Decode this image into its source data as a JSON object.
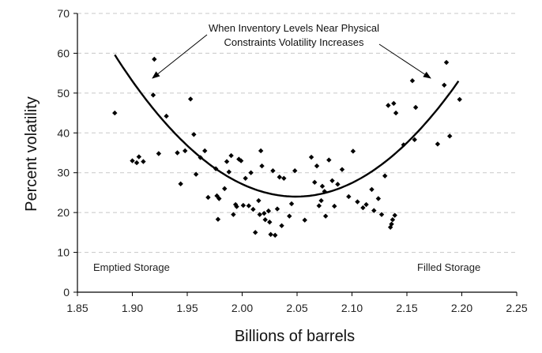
{
  "chart_data": {
    "type": "scatter",
    "title": "",
    "xlabel": "Billions of barrels",
    "ylabel": "Percent volatility",
    "xlim": [
      1.85,
      2.25
    ],
    "ylim": [
      0,
      70
    ],
    "x_ticks": [
      "1.85",
      "1.90",
      "1.95",
      "2.00",
      "2.05",
      "2.10",
      "2.15",
      "2.20",
      "2.25"
    ],
    "y_ticks": [
      "0",
      "10",
      "20",
      "30",
      "40",
      "50",
      "60",
      "70"
    ],
    "grid": "horizontal dashed",
    "marker_color": "#000000",
    "points": [
      [
        1.884,
        45.0
      ],
      [
        1.9,
        33.0
      ],
      [
        1.904,
        32.5
      ],
      [
        1.906,
        34.0
      ],
      [
        1.91,
        32.8
      ],
      [
        1.92,
        58.5
      ],
      [
        1.919,
        49.5
      ],
      [
        1.924,
        34.8
      ],
      [
        1.931,
        44.2
      ],
      [
        1.941,
        35.0
      ],
      [
        1.944,
        27.2
      ],
      [
        1.948,
        35.5
      ],
      [
        1.953,
        48.5
      ],
      [
        1.956,
        39.6
      ],
      [
        1.958,
        29.6
      ],
      [
        1.962,
        33.8
      ],
      [
        1.966,
        35.5
      ],
      [
        1.969,
        23.8
      ],
      [
        1.976,
        31.0
      ],
      [
        1.977,
        24.2
      ],
      [
        1.978,
        18.3
      ],
      [
        1.979,
        23.5
      ],
      [
        1.984,
        26.0
      ],
      [
        1.986,
        32.8
      ],
      [
        1.988,
        30.2
      ],
      [
        1.99,
        34.3
      ],
      [
        1.992,
        19.5
      ],
      [
        1.994,
        22.0
      ],
      [
        1.995,
        21.5
      ],
      [
        1.997,
        33.4
      ],
      [
        1.999,
        33.0
      ],
      [
        2.001,
        21.8
      ],
      [
        2.003,
        28.6
      ],
      [
        2.006,
        21.7
      ],
      [
        2.008,
        30.0
      ],
      [
        2.01,
        20.8
      ],
      [
        2.012,
        15.0
      ],
      [
        2.015,
        23.0
      ],
      [
        2.016,
        19.5
      ],
      [
        2.017,
        35.5
      ],
      [
        2.018,
        31.7
      ],
      [
        2.02,
        19.8
      ],
      [
        2.021,
        18.2
      ],
      [
        2.024,
        20.4
      ],
      [
        2.025,
        17.6
      ],
      [
        2.026,
        14.5
      ],
      [
        2.028,
        30.5
      ],
      [
        2.03,
        14.3
      ],
      [
        2.032,
        20.9
      ],
      [
        2.034,
        28.9
      ],
      [
        2.036,
        16.7
      ],
      [
        2.038,
        28.6
      ],
      [
        2.043,
        19.1
      ],
      [
        2.045,
        22.2
      ],
      [
        2.048,
        30.5
      ],
      [
        2.057,
        18.1
      ],
      [
        2.063,
        33.9
      ],
      [
        2.066,
        27.6
      ],
      [
        2.068,
        31.7
      ],
      [
        2.07,
        21.7
      ],
      [
        2.072,
        23.0
      ],
      [
        2.073,
        26.6
      ],
      [
        2.075,
        25.3
      ],
      [
        2.076,
        19.1
      ],
      [
        2.079,
        33.2
      ],
      [
        2.082,
        28.0
      ],
      [
        2.084,
        21.6
      ],
      [
        2.087,
        27.1
      ],
      [
        2.091,
        30.8
      ],
      [
        2.097,
        24.0
      ],
      [
        2.101,
        35.4
      ],
      [
        2.105,
        22.7
      ],
      [
        2.11,
        21.2
      ],
      [
        2.113,
        22.0
      ],
      [
        2.118,
        25.8
      ],
      [
        2.12,
        20.5
      ],
      [
        2.124,
        23.5
      ],
      [
        2.127,
        19.5
      ],
      [
        2.13,
        29.2
      ],
      [
        2.133,
        46.9
      ],
      [
        2.135,
        16.3
      ],
      [
        2.136,
        17.1
      ],
      [
        2.137,
        18.2
      ],
      [
        2.138,
        47.4
      ],
      [
        2.139,
        19.3
      ],
      [
        2.14,
        45.0
      ],
      [
        2.147,
        37.0
      ],
      [
        2.155,
        53.1
      ],
      [
        2.157,
        38.3
      ],
      [
        2.158,
        46.4
      ],
      [
        2.178,
        37.2
      ],
      [
        2.184,
        52.0
      ],
      [
        2.186,
        57.7
      ],
      [
        2.189,
        39.2
      ],
      [
        2.198,
        48.4
      ]
    ],
    "fit_curve": {
      "type": "quadratic",
      "x_range": [
        1.884,
        2.197
      ],
      "vertex": [
        2.049,
        24.0
      ],
      "anchor_points": [
        [
          1.884,
          59.6
        ],
        [
          2.049,
          24.0
        ],
        [
          2.197,
          53.0
        ]
      ]
    },
    "annotations": {
      "main_line1": "When Inventory Levels Near Physical",
      "main_line2": "Constraints Volatility Increases",
      "left_corner": "Emptied Storage",
      "right_corner": "Filled Storage"
    }
  }
}
